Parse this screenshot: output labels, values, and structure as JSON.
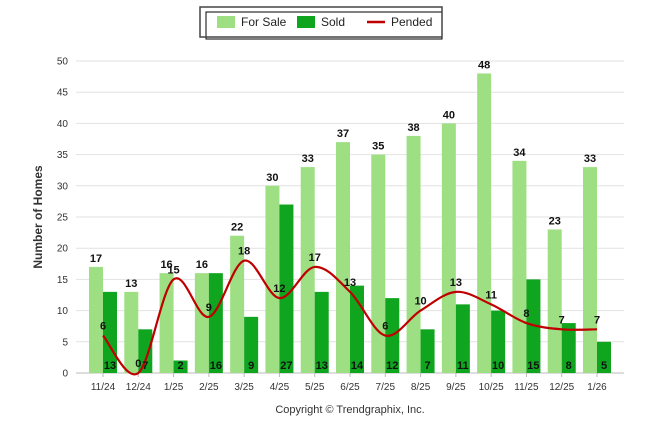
{
  "chart_data": {
    "type": "bar",
    "categories": [
      "11/24",
      "12/24",
      "1/25",
      "2/25",
      "3/25",
      "4/25",
      "5/25",
      "6/25",
      "7/25",
      "8/25",
      "9/25",
      "10/25",
      "11/25",
      "12/25",
      "1/26"
    ],
    "series": [
      {
        "name": "For Sale",
        "kind": "bar",
        "color": "#9edf84",
        "values": [
          17,
          13,
          16,
          16,
          22,
          30,
          33,
          37,
          35,
          38,
          40,
          48,
          34,
          23,
          33
        ]
      },
      {
        "name": "Sold",
        "kind": "bar",
        "color": "#10a51f",
        "values": [
          13,
          7,
          2,
          16,
          9,
          27,
          13,
          14,
          12,
          7,
          11,
          10,
          15,
          8,
          5
        ]
      },
      {
        "name": "Pended",
        "kind": "line",
        "color": "#c00000",
        "values": [
          6,
          0,
          15,
          9,
          18,
          12,
          17,
          13,
          6,
          10,
          13,
          11,
          8,
          7,
          7
        ]
      }
    ],
    "ylabel": "Number of Homes",
    "xlabel": "",
    "ylim": [
      0,
      50
    ],
    "yticks": [
      0,
      5,
      10,
      15,
      20,
      25,
      30,
      35,
      40,
      45,
      50
    ],
    "legend_position": "top-center",
    "grid": true
  },
  "footer": {
    "copyright": "Copyright © Trendgraphix, Inc."
  }
}
